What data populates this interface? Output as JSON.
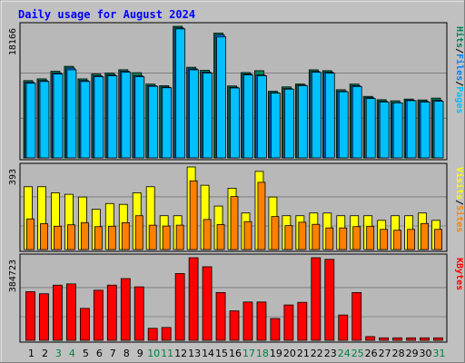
{
  "chart_data": {
    "type": "bar",
    "title": "Daily usage for August 2024",
    "categories": [
      "1",
      "2",
      "3",
      "4",
      "5",
      "6",
      "7",
      "8",
      "9",
      "10",
      "11",
      "12",
      "13",
      "14",
      "15",
      "16",
      "17",
      "18",
      "19",
      "20",
      "21",
      "22",
      "23",
      "24",
      "25",
      "26",
      "27",
      "28",
      "29",
      "30",
      "31"
    ],
    "weekend_days": [
      "3",
      "4",
      "10",
      "11",
      "17",
      "18",
      "24",
      "25",
      "31"
    ],
    "colors": {
      "background": "#c0c0c0",
      "plot_background": "#b8b8b8",
      "title": "#0000ff",
      "hits": "#00805c",
      "files": "#0080ff",
      "pages": "#00c0ff",
      "visits": "#ffff00",
      "sites": "#ff8000",
      "kbytes": "#ff0000",
      "weekend_tick": "#008040",
      "weekday_tick": "#000000"
    },
    "panels": [
      {
        "id": "hits-files-pages",
        "max_label": "18166",
        "ylim": [
          0,
          18166
        ],
        "legend": [
          {
            "text": "Hits",
            "color": "#00805c"
          },
          {
            "text": "/",
            "color": "#000000"
          },
          {
            "text": "Files",
            "color": "#0080ff"
          },
          {
            "text": "/",
            "color": "#000000"
          },
          {
            "text": "Pages",
            "color": "#00c0ff"
          }
        ],
        "series": [
          {
            "name": "Hits",
            "values": [
              10670,
              10910,
              11960,
              12640,
              10910,
              11580,
              11720,
              12170,
              11760,
              10190,
              9970,
              18166,
              12510,
              12090,
              17230,
              9930,
              11780,
              12040,
              9200,
              9800,
              10190,
              12160,
              12040,
              9410,
              10190,
              8490,
              8030,
              7880,
              8120,
              8000,
              8250
            ]
          },
          {
            "name": "Files",
            "values": [
              10430,
              10670,
              11720,
              12400,
              10670,
              11340,
              11460,
              11970,
              11330,
              9960,
              9770,
              17940,
              12280,
              11850,
              16990,
              9750,
              11570,
              11440,
              9000,
              9560,
              10060,
              11930,
              11820,
              9190,
              9960,
              8310,
              7800,
              7620,
              7950,
              7800,
              7950
            ]
          },
          {
            "name": "Pages",
            "values": [
              10310,
              10550,
              11570,
              12160,
              10550,
              11220,
              11340,
              11820,
              11210,
              9880,
              9680,
              17810,
              12160,
              11710,
              16700,
              9650,
              11450,
              11340,
              8950,
              9490,
              9980,
              11820,
              11700,
              9130,
              9860,
              8200,
              7720,
              7600,
              7900,
              7720,
              7820
            ]
          }
        ]
      },
      {
        "id": "visits-sites",
        "max_label": "393",
        "ylim": [
          0,
          393
        ],
        "legend": [
          {
            "text": "Visits",
            "color": "#ffff00"
          },
          {
            "text": "/",
            "color": "#000000"
          },
          {
            "text": "Sites",
            "color": "#ff8000"
          }
        ],
        "series": [
          {
            "name": "Visits",
            "values": [
              299,
              299,
              270,
              263,
              250,
              192,
              219,
              215,
              270,
              299,
              161,
              161,
              393,
              306,
              207,
              292,
              174,
              372,
              250,
              161,
              161,
              174,
              174,
              161,
              161,
              161,
              139,
              161,
              161,
              174,
              139
            ]
          },
          {
            "name": "Sites",
            "values": [
              146,
              123,
              111,
              118,
              128,
              109,
              111,
              128,
              161,
              116,
              112,
              116,
              327,
              143,
              119,
              252,
              133,
              320,
              157,
              114,
              130,
              120,
              103,
              103,
              109,
              111,
              96,
              92,
              96,
              124,
              96
            ]
          }
        ]
      },
      {
        "id": "kbytes",
        "max_label": "384723",
        "ylim": [
          0,
          384723
        ],
        "legend": [
          {
            "text": "KBytes",
            "color": "#ff0000"
          }
        ],
        "series": [
          {
            "name": "KBytes",
            "values": [
              226520,
              216890,
              256950,
              262710,
              148670,
              233210,
              256950,
              287530,
              249060,
              55840,
              59690,
              311060,
              384723,
              342700,
              222540,
              137100,
              178380,
              178380,
              101530,
              164580,
              176800,
              384723,
              377060,
              117840,
              222540,
              17300,
              11540,
              11540,
              11540,
              11540,
              11540
            ]
          }
        ]
      }
    ]
  }
}
